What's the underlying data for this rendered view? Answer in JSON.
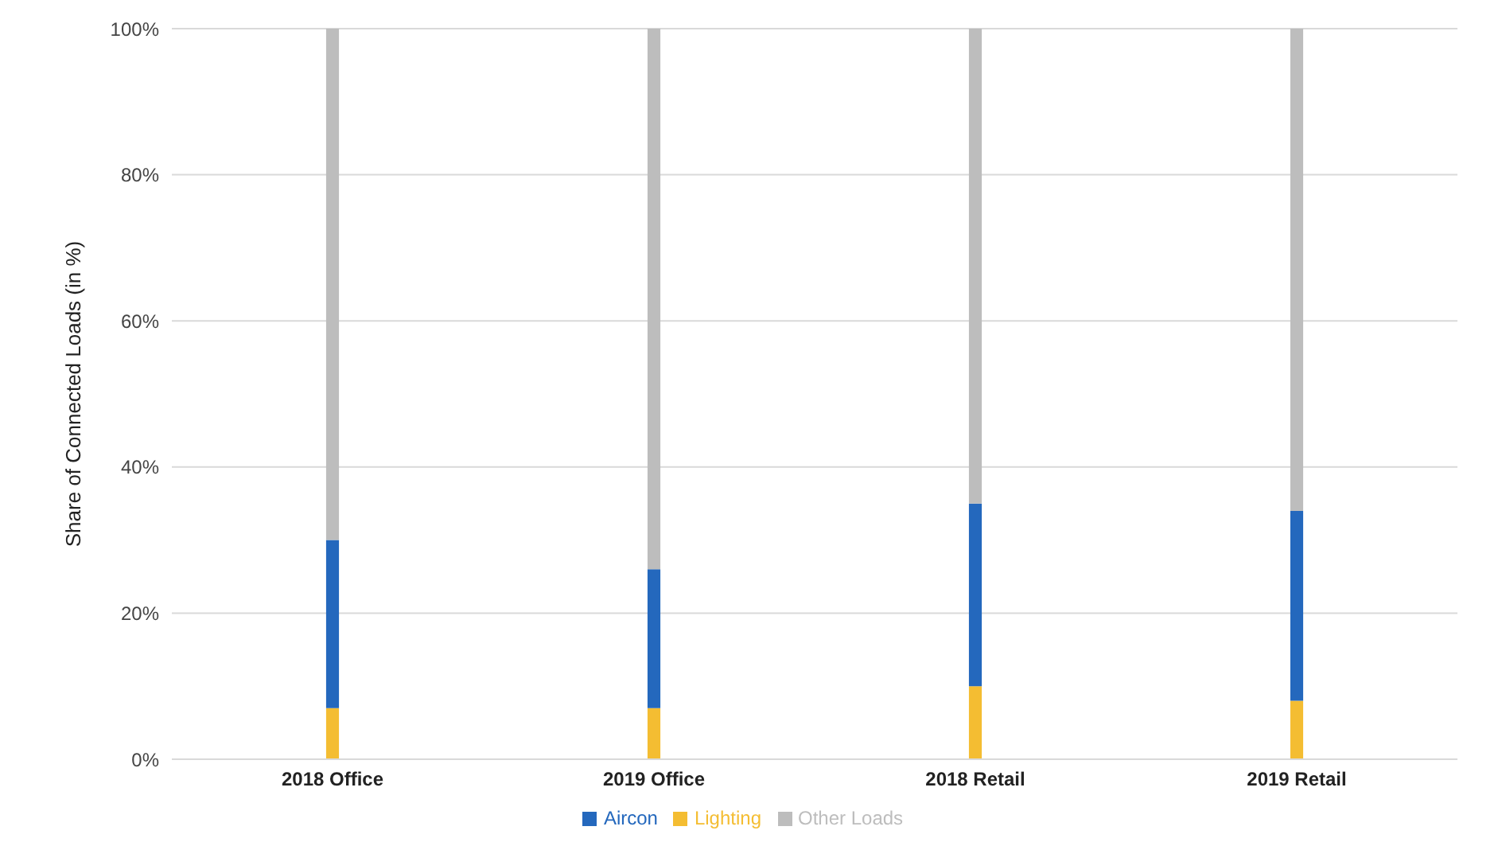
{
  "chart_data": {
    "type": "bar",
    "stacked": true,
    "ylabel": "Share of Connected Loads (in %)",
    "categories": [
      "2018 Office",
      "2019 Office",
      "2018 Retail",
      "2019 Retail"
    ],
    "series": [
      {
        "name": "Lighting",
        "color": "#f4bd32",
        "values": [
          7,
          7,
          10,
          8
        ]
      },
      {
        "name": "Aircon",
        "color": "#2468bd",
        "values": [
          23,
          19,
          25,
          26
        ]
      },
      {
        "name": "Other Loads",
        "color": "#bdbdbd",
        "values": [
          70,
          74,
          65,
          66
        ]
      }
    ],
    "ylim": [
      0,
      100
    ],
    "yticks": [
      {
        "value": 0,
        "label": "0%"
      },
      {
        "value": 20,
        "label": "20%"
      },
      {
        "value": 40,
        "label": "40%"
      },
      {
        "value": 60,
        "label": "60%"
      },
      {
        "value": 80,
        "label": "80%"
      },
      {
        "value": 100,
        "label": "100%"
      }
    ],
    "grid": "y",
    "legend": "bottom"
  }
}
